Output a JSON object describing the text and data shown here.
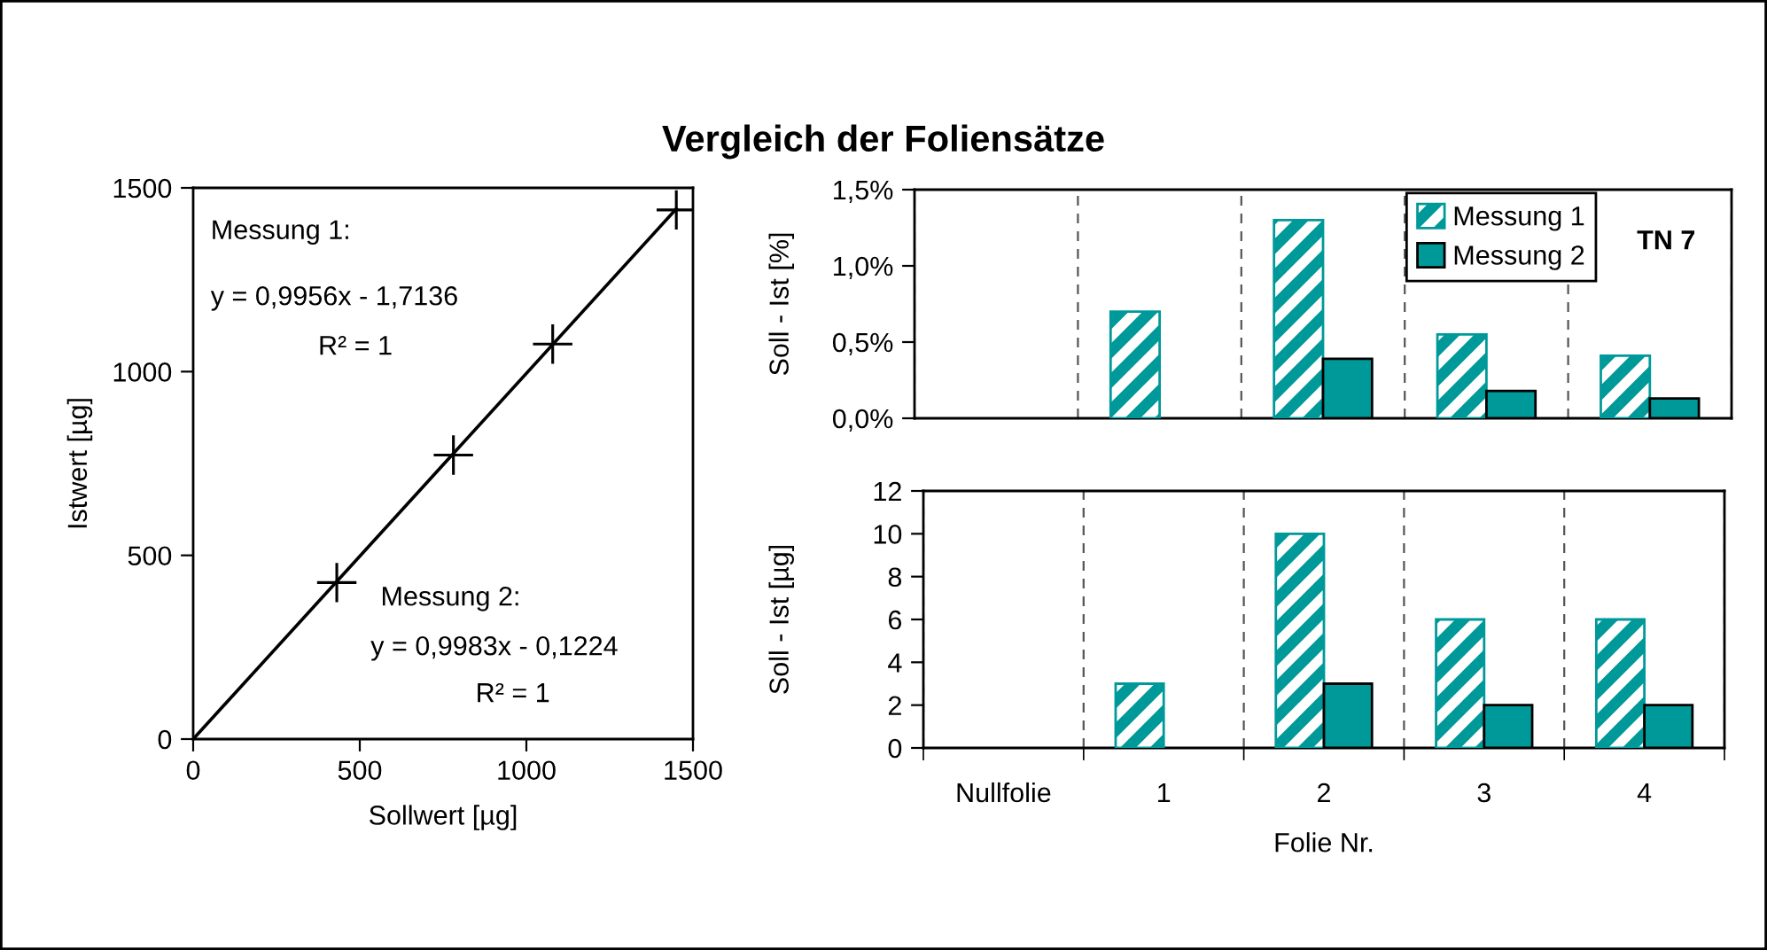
{
  "chart_data": [
    {
      "type": "scatter",
      "title": "Vergleich der Foliensätze",
      "xlabel": "Sollwert [µg]",
      "ylabel": "Istwert [µg]",
      "annotations": [
        "Messung 1:",
        "y = 0,9956x - 1,7136",
        "R² = 1",
        "Messung 2:",
        "y = 0,9983x - 0,1224",
        "R² = 1"
      ],
      "series": [
        {
          "type": "scatter",
          "color": "#000000",
          "marker": "cross",
          "x": [
            431,
            781,
            1079,
            1450
          ],
          "values": [
            426,
            773,
            1075,
            1440
          ]
        },
        {
          "type": "line",
          "color": "#000000",
          "x": [
            0,
            1450
          ],
          "values": [
            0,
            1443
          ]
        }
      ],
      "xlim": [
        0,
        1500
      ],
      "ylim": [
        0,
        1500
      ],
      "xticks": [
        0,
        500,
        1000,
        1500
      ],
      "yticks": [
        0,
        500,
        1000,
        1500
      ]
    },
    {
      "type": "bar",
      "ylabel": "Soll - Ist [%]",
      "annotations": [
        "TN 7"
      ],
      "categories": [
        null,
        null,
        null,
        null,
        null
      ],
      "series": [
        {
          "name": "Messung 1",
          "color": "#009999",
          "values": [
            null,
            0.7,
            1.3,
            0.55,
            0.41
          ]
        },
        {
          "name": "Messung 2",
          "color": "#009999",
          "values": [
            null,
            null,
            0.39,
            0.18,
            0.13
          ]
        }
      ],
      "ylim": [
        0,
        1.5
      ],
      "yticks": [
        {
          "value": 0,
          "label": "0,0%"
        },
        {
          "value": 0.5,
          "label": "0,5%"
        },
        {
          "value": 1,
          "label": "1,0%"
        },
        {
          "value": 1.5,
          "label": "1,5%"
        }
      ],
      "grid": "x",
      "legend": "top right",
      "tick_labels": "y"
    },
    {
      "type": "bar",
      "xlabel": "Folie Nr.",
      "ylabel": "Soll - Ist [µg]",
      "categories": [
        "Nullfolie",
        "1",
        "2",
        "3",
        "4"
      ],
      "series": [
        {
          "color": "#009999",
          "values": [
            null,
            3,
            10,
            6,
            6
          ]
        },
        {
          "color": "#009999",
          "values": [
            null,
            null,
            3,
            2,
            2
          ]
        }
      ],
      "ylim": [
        0,
        12
      ],
      "yticks": [
        0,
        2,
        4,
        6,
        8,
        10,
        12
      ],
      "grid": "x"
    }
  ]
}
